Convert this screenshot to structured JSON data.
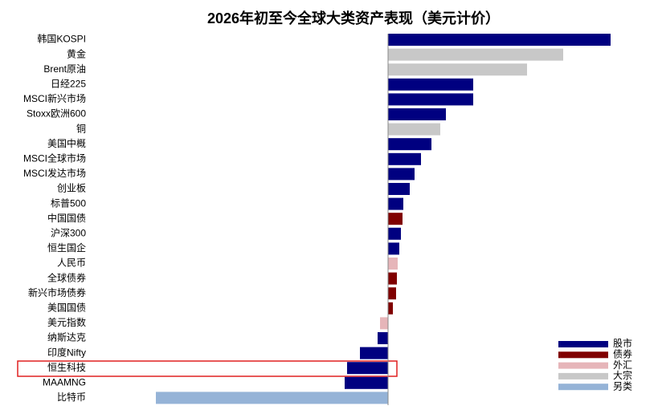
{
  "chart_data": {
    "type": "barh",
    "title": "2026年初至今全球大类资产表现（美元计价）",
    "categories": [
      "韩国KOSPI",
      "黄金",
      "Brent原油",
      "日经225",
      "MSCI新兴市场",
      "Stoxx欧洲600",
      "铜",
      "美国中概",
      "MSCI全球市场",
      "MSCI发达市场",
      "创业板",
      "标普500",
      "中国国债",
      "沪深300",
      "恒生国企",
      "人民币",
      "全球债券",
      "新兴市场债券",
      "美国国债",
      "美元指数",
      "纳斯达克",
      "印度Nifty",
      "恒生科技",
      "MAAMNG",
      "比特币"
    ],
    "series": [
      {
        "name": "股市",
        "color": "#000080",
        "values": [
          27.7,
          null,
          null,
          10.6,
          10.6,
          7.2,
          null,
          5.4,
          4.1,
          3.3,
          2.7,
          1.9,
          null,
          1.6,
          1.4,
          null,
          null,
          null,
          null,
          null,
          -1.3,
          -3.5,
          -5.1,
          -5.4,
          null
        ]
      },
      {
        "name": "债券",
        "color": "#800000",
        "values": [
          null,
          null,
          null,
          null,
          null,
          null,
          null,
          null,
          null,
          null,
          null,
          null,
          1.8,
          null,
          null,
          null,
          1.1,
          1.0,
          0.6,
          null,
          null,
          null,
          null,
          null,
          null
        ]
      },
      {
        "name": "外汇",
        "color": "#e6b5b9",
        "values": [
          null,
          null,
          null,
          null,
          null,
          null,
          null,
          null,
          null,
          null,
          null,
          null,
          null,
          null,
          null,
          1.2,
          null,
          null,
          null,
          -1.0,
          null,
          null,
          null,
          null,
          null
        ]
      },
      {
        "name": "大宗",
        "color": "#c8c8c8",
        "values": [
          null,
          21.8,
          17.3,
          null,
          null,
          null,
          6.5,
          null,
          null,
          null,
          null,
          null,
          null,
          null,
          null,
          null,
          null,
          null,
          null,
          null,
          null,
          null,
          null,
          null,
          null
        ]
      },
      {
        "name": "另类",
        "color": "#95b3d7",
        "values": [
          null,
          null,
          null,
          null,
          null,
          null,
          null,
          null,
          null,
          null,
          null,
          null,
          null,
          null,
          null,
          null,
          null,
          null,
          null,
          null,
          null,
          null,
          null,
          null,
          -28.9
        ]
      }
    ],
    "xlim": [
      -30,
      30
    ]
  }
}
